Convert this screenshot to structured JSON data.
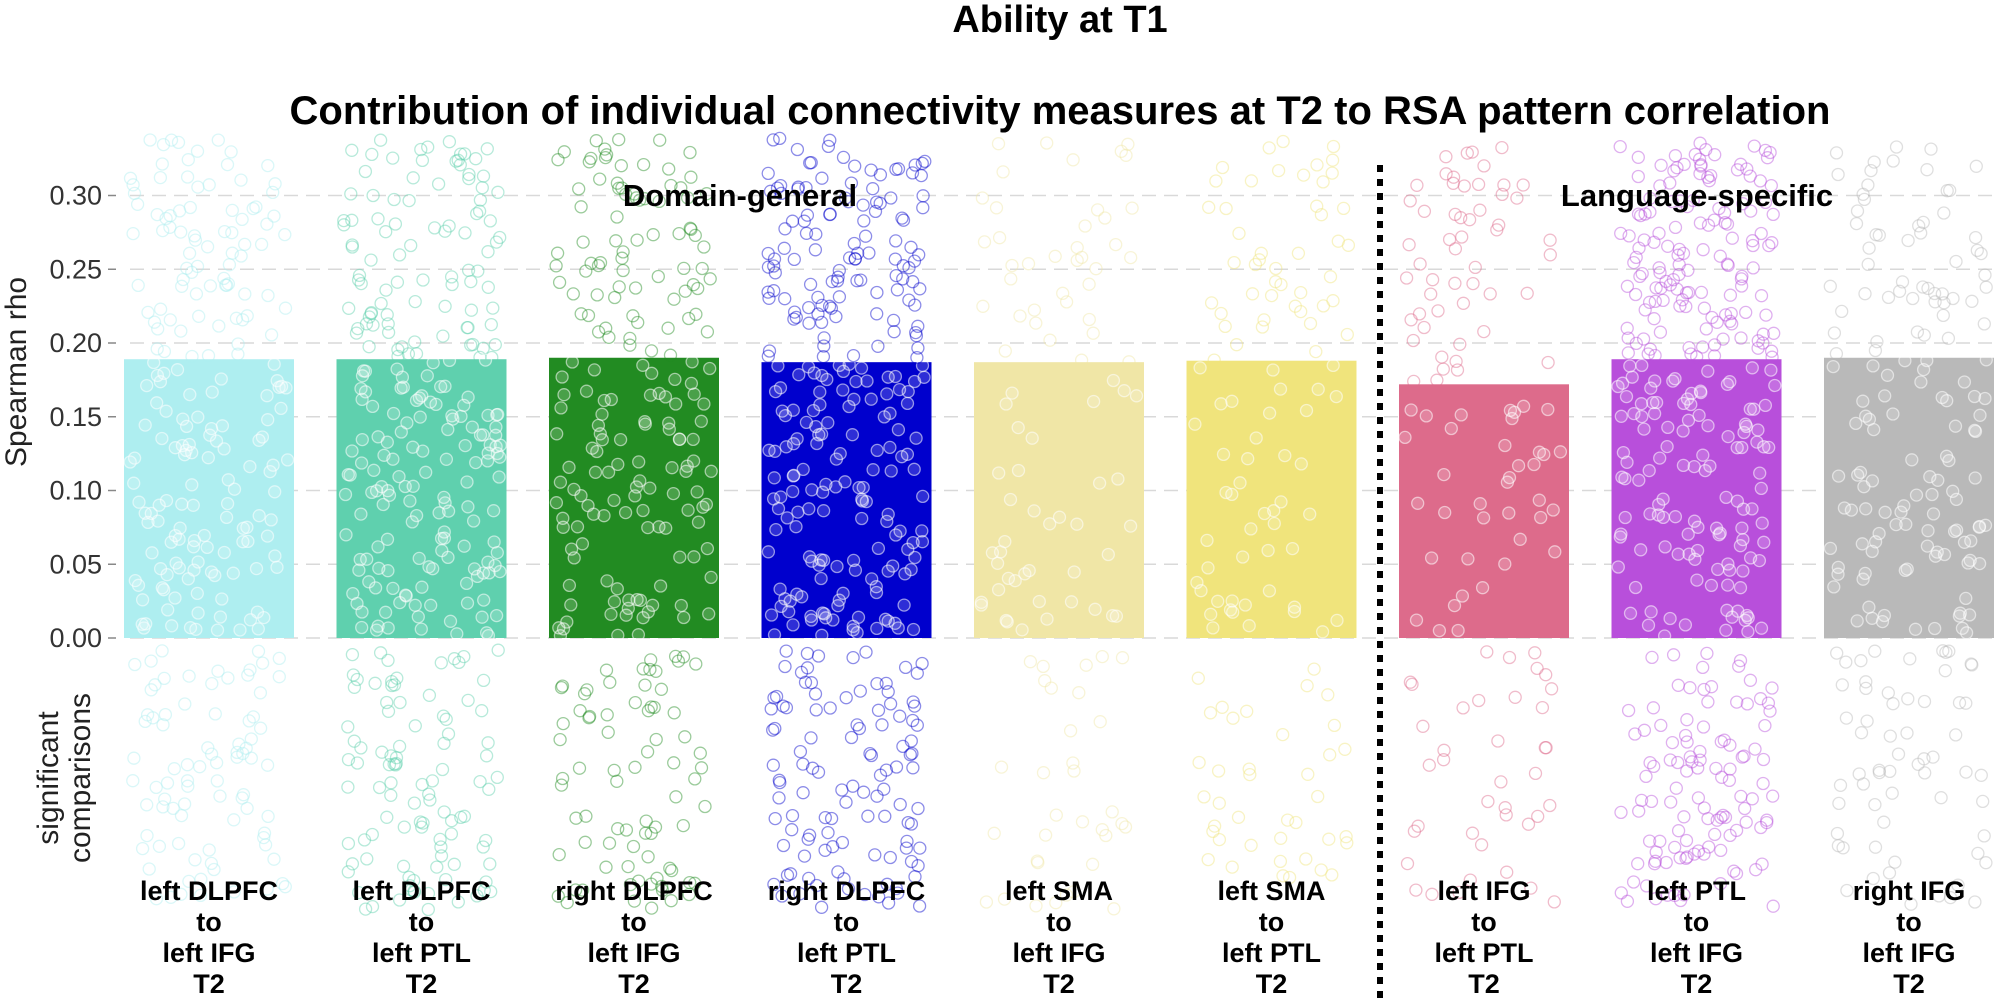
{
  "chart_data": {
    "type": "bar",
    "title": "Ability at T1",
    "subtitle": "Contribution of individual connectivity measures at T2 to RSA pattern correlation",
    "ylabel": "Spearman rho",
    "lower_ylabel": [
      "significant",
      "comparisons"
    ],
    "ylim": [
      0.0,
      0.32
    ],
    "yticks": [
      0.0,
      0.05,
      0.1,
      0.15,
      0.2,
      0.25,
      0.3
    ],
    "ytick_labels": [
      "0.00",
      "0.05",
      "0.10",
      "0.15",
      "0.20",
      "0.25",
      "0.30"
    ],
    "grid": true,
    "groups": [
      {
        "label": "Domain-general",
        "categories": [
          0,
          1,
          2,
          3,
          4,
          5
        ]
      },
      {
        "label": "Language-specific",
        "categories": [
          6,
          7,
          8
        ]
      }
    ],
    "categories": [
      {
        "lines": [
          "left DLPFC",
          "to",
          "left IFG",
          "T2"
        ],
        "value": 0.189,
        "color": "#aeeef0",
        "point_density": 0.75
      },
      {
        "lines": [
          "left DLPFC",
          "to",
          "left PTL",
          "T2"
        ],
        "value": 0.189,
        "color": "#5fd0ae",
        "point_density": 0.9
      },
      {
        "lines": [
          "right DLPFC",
          "to",
          "left IFG",
          "T2"
        ],
        "value": 0.19,
        "color": "#228b22",
        "point_density": 0.7
      },
      {
        "lines": [
          "right DLPFC",
          "to",
          "left PTL",
          "T2"
        ],
        "value": 0.187,
        "color": "#0000cd",
        "point_density": 1.0
      },
      {
        "lines": [
          "left SMA",
          "to",
          "left IFG",
          "T2"
        ],
        "value": 0.187,
        "color": "#f0e6a6",
        "point_density": 0.3
      },
      {
        "lines": [
          "left SMA",
          "to",
          "left PTL",
          "T2"
        ],
        "value": 0.188,
        "color": "#f0e47c",
        "point_density": 0.35
      },
      {
        "lines": [
          "left IFG",
          "to",
          "left PTL",
          "T2"
        ],
        "value": 0.172,
        "color": "#dd6b8b",
        "point_density": 0.35
      },
      {
        "lines": [
          "left PTL",
          "to",
          "left IFG",
          "T2"
        ],
        "value": 0.189,
        "color": "#b84fdb",
        "point_density": 1.0
      },
      {
        "lines": [
          "right IFG",
          "to",
          "left IFG",
          "T2"
        ],
        "value": 0.19,
        "color": "#b9b9b9",
        "point_density": 0.55
      }
    ]
  }
}
